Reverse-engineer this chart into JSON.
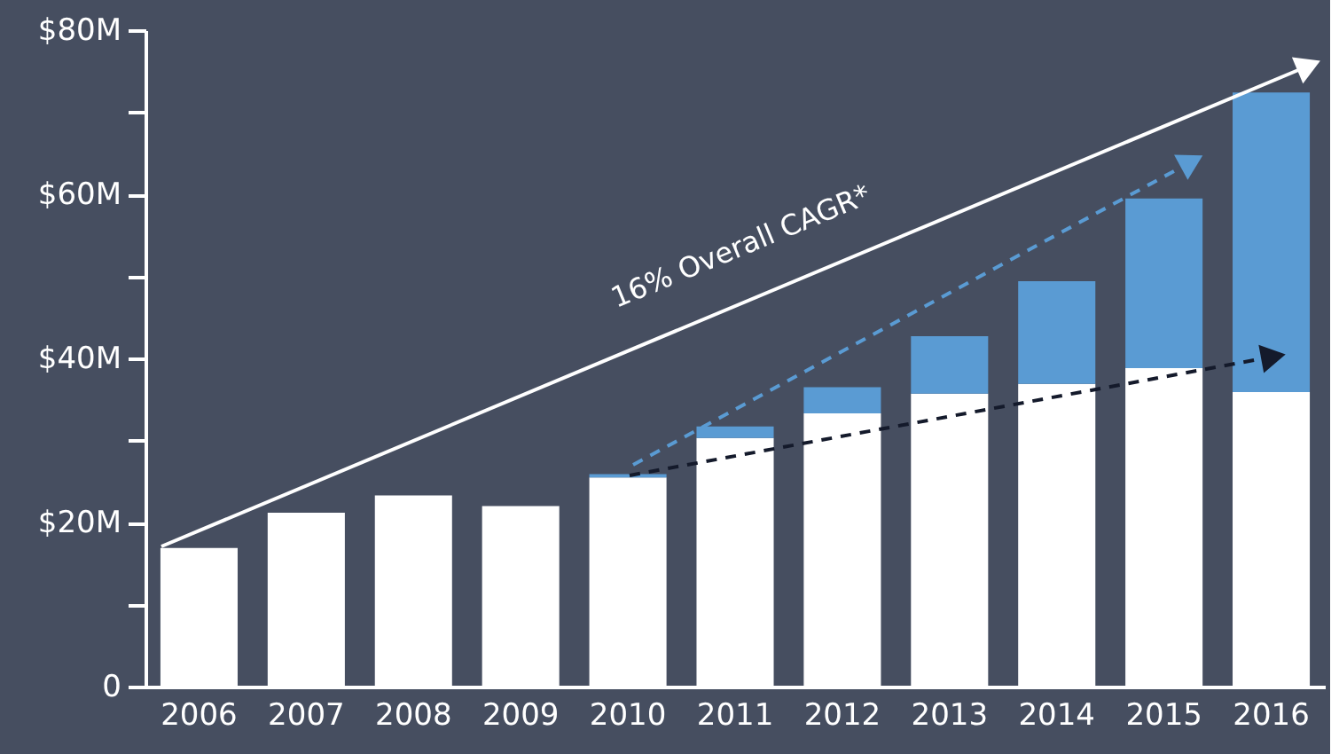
{
  "chart_data": {
    "type": "bar",
    "stacked": true,
    "categories": [
      "2006",
      "2007",
      "2008",
      "2009",
      "2010",
      "2011",
      "2012",
      "2013",
      "2014",
      "2015",
      "2016"
    ],
    "series": [
      {
        "color": "#ffffff",
        "values": [
          16.9,
          21.2,
          23.3,
          22.0,
          25.5,
          30.3,
          33.3,
          35.7,
          36.9,
          38.8,
          35.9
        ]
      },
      {
        "color": "#5a9bd3",
        "values": [
          null,
          null,
          null,
          null,
          0.4,
          1.4,
          3.2,
          7.0,
          12.5,
          20.7,
          36.5
        ]
      }
    ],
    "ylim": [
      0,
      80
    ],
    "yticks": [
      0,
      {
        "value": 10,
        "label": null
      },
      {
        "value": 20,
        "label": "$20M"
      },
      {
        "value": 30,
        "label": null
      },
      {
        "value": 40,
        "label": "$40M"
      },
      {
        "value": 50,
        "label": null
      },
      {
        "value": 60,
        "label": "$60M"
      },
      {
        "value": 70,
        "label": null
      },
      {
        "value": 80,
        "label": "$80M"
      }
    ],
    "annotations": [
      "16% Overall CAGR*"
    ],
    "grid": false
  }
}
